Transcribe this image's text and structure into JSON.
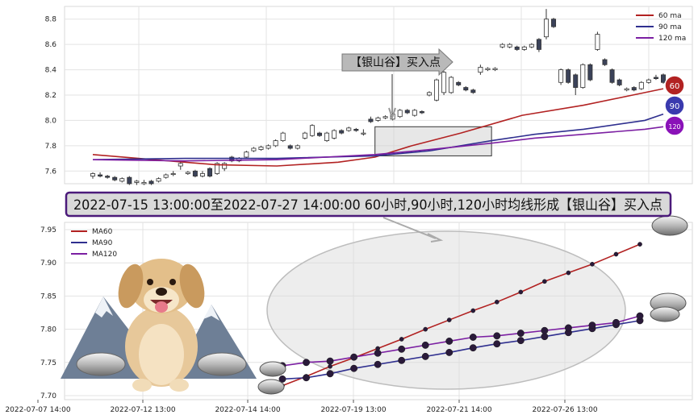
{
  "chart_data": [
    {
      "type": "candlestick",
      "ylim": [
        7.5,
        8.9
      ],
      "y_ticks": [
        "7.6",
        "7.8",
        "8.0",
        "8.2",
        "8.4",
        "8.6",
        "8.8"
      ],
      "grid": true,
      "legend": {
        "position": "top-right",
        "entries": [
          "60 ma",
          "90 ma",
          "120 ma"
        ]
      },
      "callout": "【银山谷】买入点",
      "badges": [
        "60",
        "90",
        "120"
      ],
      "candles": [
        [
          7.56,
          7.58,
          7.54,
          7.59
        ],
        [
          7.57,
          7.56,
          7.55,
          7.59
        ],
        [
          7.56,
          7.55,
          7.54,
          7.57
        ],
        [
          7.55,
          7.53,
          7.52,
          7.56
        ],
        [
          7.52,
          7.54,
          7.51,
          7.55
        ],
        [
          7.55,
          7.5,
          7.49,
          7.56
        ],
        [
          7.51,
          7.52,
          7.49,
          7.53
        ],
        [
          7.5,
          7.51,
          7.49,
          7.53
        ],
        [
          7.52,
          7.5,
          7.49,
          7.53
        ],
        [
          7.52,
          7.54,
          7.51,
          7.55
        ],
        [
          7.55,
          7.57,
          7.54,
          7.58
        ],
        [
          7.58,
          7.58,
          7.56,
          7.6
        ],
        [
          7.64,
          7.66,
          7.61,
          7.67
        ],
        [
          7.58,
          7.59,
          7.57,
          7.6
        ],
        [
          7.6,
          7.56,
          7.55,
          7.61
        ],
        [
          7.56,
          7.58,
          7.55,
          7.6
        ],
        [
          7.62,
          7.56,
          7.55,
          7.63
        ],
        [
          7.58,
          7.66,
          7.57,
          7.67
        ],
        [
          7.62,
          7.66,
          7.6,
          7.67
        ],
        [
          7.71,
          7.68,
          7.67,
          7.72
        ],
        [
          7.68,
          7.7,
          7.67,
          7.71
        ],
        [
          7.71,
          7.75,
          7.7,
          7.76
        ],
        [
          7.76,
          7.78,
          7.75,
          7.79
        ],
        [
          7.77,
          7.79,
          7.76,
          7.8
        ],
        [
          7.78,
          7.8,
          7.77,
          7.81
        ],
        [
          7.8,
          7.84,
          7.79,
          7.85
        ],
        [
          7.84,
          7.9,
          7.83,
          7.91
        ],
        [
          7.8,
          7.78,
          7.77,
          7.81
        ],
        [
          7.78,
          7.8,
          7.77,
          7.81
        ],
        [
          7.86,
          7.9,
          7.85,
          7.91
        ],
        [
          7.88,
          7.96,
          7.87,
          7.97
        ],
        [
          7.9,
          7.88,
          7.87,
          7.91
        ],
        [
          7.84,
          7.9,
          7.83,
          7.91
        ],
        [
          7.86,
          7.92,
          7.85,
          7.93
        ],
        [
          7.92,
          7.9,
          7.89,
          7.93
        ],
        [
          7.92,
          7.94,
          7.91,
          7.95
        ],
        [
          7.93,
          7.92,
          7.91,
          7.94
        ],
        [
          7.9,
          7.9,
          7.88,
          7.93
        ],
        [
          8.01,
          7.99,
          7.98,
          8.03
        ],
        [
          8.0,
          8.02,
          7.99,
          8.03
        ],
        [
          8.02,
          8.03,
          8.01,
          8.04
        ],
        [
          8.01,
          8.05,
          8.0,
          8.06
        ],
        [
          8.03,
          8.08,
          8.02,
          8.09
        ],
        [
          8.08,
          8.06,
          8.05,
          8.09
        ],
        [
          8.04,
          8.08,
          8.03,
          8.09
        ],
        [
          8.07,
          8.06,
          8.05,
          8.08
        ],
        [
          8.2,
          8.22,
          8.19,
          8.23
        ],
        [
          8.16,
          8.32,
          8.15,
          8.33
        ],
        [
          8.22,
          8.38,
          8.2,
          8.39
        ],
        [
          8.22,
          8.34,
          8.21,
          8.35
        ],
        [
          8.3,
          8.28,
          8.27,
          8.31
        ],
        [
          8.26,
          8.24,
          8.23,
          8.27
        ],
        [
          8.24,
          8.22,
          8.21,
          8.25
        ],
        [
          8.38,
          8.42,
          8.36,
          8.44
        ],
        [
          8.4,
          8.41,
          8.39,
          8.42
        ],
        [
          8.4,
          8.41,
          8.39,
          8.42
        ],
        [
          8.58,
          8.6,
          8.57,
          8.61
        ],
        [
          8.58,
          8.6,
          8.57,
          8.61
        ],
        [
          8.58,
          8.56,
          8.55,
          8.59
        ],
        [
          8.56,
          8.58,
          8.55,
          8.59
        ],
        [
          8.58,
          8.6,
          8.57,
          8.61
        ],
        [
          8.64,
          8.56,
          8.54,
          8.65
        ],
        [
          8.66,
          8.8,
          8.64,
          8.88
        ],
        [
          8.8,
          8.74,
          8.73,
          8.81
        ],
        [
          8.3,
          8.4,
          8.28,
          8.41
        ],
        [
          8.4,
          8.3,
          8.29,
          8.41
        ],
        [
          8.36,
          8.26,
          8.2,
          8.37
        ],
        [
          8.26,
          8.44,
          8.25,
          8.45
        ],
        [
          8.44,
          8.32,
          8.31,
          8.45
        ],
        [
          8.56,
          8.68,
          8.55,
          8.7
        ],
        [
          8.48,
          8.44,
          8.43,
          8.49
        ],
        [
          8.4,
          8.3,
          8.29,
          8.41
        ],
        [
          8.32,
          8.28,
          8.27,
          8.33
        ],
        [
          8.24,
          8.25,
          8.23,
          8.26
        ],
        [
          8.26,
          8.24,
          8.23,
          8.27
        ],
        [
          8.25,
          8.3,
          8.24,
          8.31
        ],
        [
          8.3,
          8.32,
          8.29,
          8.33
        ],
        [
          8.34,
          8.33,
          8.32,
          8.36
        ],
        [
          8.36,
          8.3,
          8.29,
          8.37
        ]
      ],
      "series": [
        {
          "name": "60 ma",
          "color": "#b22222",
          "values": [
            [
              0,
              7.73
            ],
            [
              10,
              7.69
            ],
            [
              20,
              7.65
            ],
            [
              30,
              7.64
            ],
            [
              40,
              7.67
            ],
            [
              46,
              7.71
            ],
            [
              52,
              7.8
            ],
            [
              60,
              7.9
            ],
            [
              70,
              8.04
            ],
            [
              80,
              8.12
            ],
            [
              88,
              8.2
            ],
            [
              93,
              8.25
            ]
          ]
        },
        {
          "name": "90 ma",
          "color": "#2f2f8f",
          "values": [
            [
              0,
              7.69
            ],
            [
              15,
              7.7
            ],
            [
              30,
              7.7
            ],
            [
              46,
              7.72
            ],
            [
              55,
              7.76
            ],
            [
              65,
              7.84
            ],
            [
              72,
              7.89
            ],
            [
              80,
              7.93
            ],
            [
              90,
              8.0
            ],
            [
              93,
              8.05
            ]
          ]
        },
        {
          "name": "120 ma",
          "color": "#7b1fa2",
          "values": [
            [
              0,
              7.69
            ],
            [
              15,
              7.68
            ],
            [
              30,
              7.69
            ],
            [
              46,
              7.73
            ],
            [
              55,
              7.77
            ],
            [
              65,
              7.82
            ],
            [
              72,
              7.86
            ],
            [
              80,
              7.89
            ],
            [
              90,
              7.93
            ],
            [
              93,
              7.95
            ]
          ]
        }
      ],
      "highlight": {
        "x_start": 46,
        "x_end": 65,
        "y_low": 7.72,
        "y_high": 7.95
      }
    },
    {
      "type": "line",
      "title": "2022-07-15 13:00:00至2022-07-27 14:00:00 60小时,90小时,120小时均线形成【银山谷】买入点",
      "ylim": [
        7.69,
        7.96
      ],
      "y_ticks": [
        "7.70",
        "7.75",
        "7.80",
        "7.85",
        "7.90",
        "7.95"
      ],
      "x_ticks": [
        "2022-07-07 14:00",
        "2022-07-12 13:00",
        "2022-07-14 14:00",
        "2022-07-19 13:00",
        "2022-07-21 14:00",
        "2022-07-26 13:00"
      ],
      "grid": true,
      "legend": {
        "position": "top-left",
        "entries": [
          "MA60",
          "MA90",
          "MA120"
        ]
      },
      "series": [
        {
          "name": "MA60",
          "color": "#b22222",
          "values": [
            7.715,
            7.729,
            7.744,
            7.757,
            7.771,
            7.785,
            7.8,
            7.814,
            7.828,
            7.841,
            7.856,
            7.872,
            7.885,
            7.898,
            7.913,
            7.928
          ]
        },
        {
          "name": "MA90",
          "color": "#2f2f8f",
          "values": [
            7.725,
            7.727,
            7.733,
            7.741,
            7.747,
            7.753,
            7.759,
            7.765,
            7.772,
            7.778,
            7.783,
            7.789,
            7.795,
            7.801,
            7.807,
            7.813
          ]
        },
        {
          "name": "MA120",
          "color": "#7b1fa2",
          "values": [
            7.745,
            7.75,
            7.752,
            7.758,
            7.764,
            7.77,
            7.776,
            7.782,
            7.788,
            7.79,
            7.794,
            7.798,
            7.802,
            7.806,
            7.81,
            7.82
          ]
        }
      ]
    }
  ]
}
